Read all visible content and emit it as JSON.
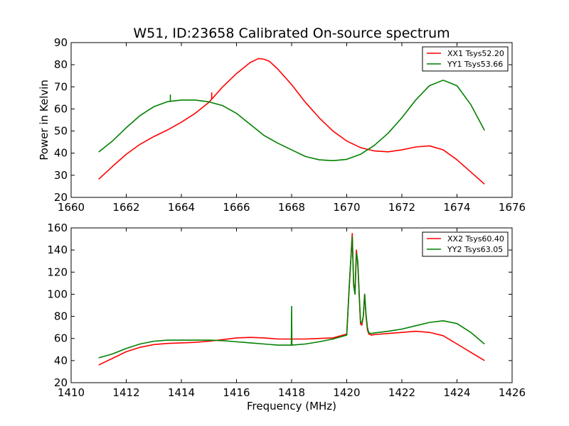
{
  "chart_data": [
    {
      "type": "line",
      "title": "W51, ID:23658 Calibrated On-source spectrum",
      "xlabel": "",
      "ylabel": "Power in Kelvin",
      "xlim": [
        1660,
        1676
      ],
      "ylim": [
        20,
        90
      ],
      "xticks": [
        1660,
        1662,
        1664,
        1666,
        1668,
        1670,
        1672,
        1674,
        1676
      ],
      "yticks": [
        20,
        30,
        40,
        50,
        60,
        70,
        80,
        90
      ],
      "grid": false,
      "legend_position": "top-right",
      "series": [
        {
          "name": "XX1 Tsys52.20",
          "color": "#ff0000",
          "x": [
            1661,
            1661.5,
            1662,
            1662.5,
            1663,
            1663.5,
            1664,
            1664.5,
            1665,
            1665.5,
            1666,
            1666.5,
            1666.8,
            1667,
            1667.2,
            1667.5,
            1668,
            1668.5,
            1669,
            1669.5,
            1670,
            1670.5,
            1671,
            1671.5,
            1672,
            1672.5,
            1673,
            1673.5,
            1674,
            1674.5,
            1675
          ],
          "y": [
            28.2,
            34,
            39.5,
            44,
            47.5,
            50.5,
            54,
            58,
            63,
            70,
            76,
            81,
            82.8,
            82.5,
            81.5,
            78,
            71,
            63,
            56,
            50,
            45.5,
            42.5,
            41,
            40.6,
            41.5,
            42.8,
            43.3,
            41.5,
            37,
            31.5,
            26
          ]
        },
        {
          "name": "YY1 Tsys53.66",
          "color": "#008000",
          "x": [
            1661,
            1661.5,
            1662,
            1662.5,
            1663,
            1663.5,
            1664,
            1664.5,
            1665,
            1665.5,
            1666,
            1666.5,
            1667,
            1667.5,
            1668,
            1668.5,
            1669,
            1669.5,
            1670,
            1670.5,
            1671,
            1671.5,
            1672,
            1672.5,
            1673,
            1673.5,
            1674,
            1674.5,
            1675
          ],
          "y": [
            40.5,
            45.5,
            51.5,
            57,
            61,
            63.3,
            64,
            64,
            63.2,
            61.5,
            58,
            53,
            48,
            44.5,
            41.5,
            38.5,
            37,
            36.6,
            37.2,
            39.5,
            43.5,
            49,
            56,
            64,
            70.5,
            73,
            70.5,
            62,
            50.3
          ]
        }
      ],
      "annotations": [
        {
          "series": "YY1 Tsys53.66",
          "x": 1663.6,
          "peak_y": 66.5
        },
        {
          "series": "XX1 Tsys52.20",
          "x": 1665.1,
          "peak_y": 67.5
        }
      ]
    },
    {
      "type": "line",
      "title": "",
      "xlabel": "Frequency (MHz)",
      "ylabel": "",
      "xlim": [
        1410,
        1426
      ],
      "ylim": [
        20,
        160
      ],
      "xticks": [
        1410,
        1412,
        1414,
        1416,
        1418,
        1420,
        1422,
        1424,
        1426
      ],
      "yticks": [
        20,
        40,
        60,
        80,
        100,
        120,
        140,
        160
      ],
      "grid": false,
      "legend_position": "top-right",
      "series": [
        {
          "name": "XX2 Tsys60.40",
          "color": "#ff0000",
          "x": [
            1411,
            1411.5,
            1412,
            1412.5,
            1413,
            1413.5,
            1414,
            1414.5,
            1415,
            1415.5,
            1416,
            1416.5,
            1417,
            1417.5,
            1418,
            1418.5,
            1419,
            1419.5,
            1420,
            1420.1,
            1420.2,
            1420.25,
            1420.3,
            1420.35,
            1420.4,
            1420.45,
            1420.5,
            1420.55,
            1420.6,
            1420.65,
            1420.7,
            1420.75,
            1420.8,
            1420.9,
            1421,
            1421.5,
            1422,
            1422.5,
            1423,
            1423.5,
            1424,
            1424.5,
            1425
          ],
          "y": [
            36,
            42,
            48,
            52,
            54.5,
            55.5,
            56,
            56.5,
            57.5,
            59,
            60.5,
            61,
            60.5,
            59.5,
            59.5,
            59.5,
            60,
            60.5,
            64,
            110,
            155,
            110,
            101,
            140,
            128,
            100,
            73,
            72,
            80,
            100,
            80,
            68,
            64,
            63,
            63.5,
            64.5,
            65.5,
            66.5,
            65.5,
            62.5,
            55,
            47.5,
            40
          ]
        },
        {
          "name": "YY2 Tsys63.05",
          "color": "#008000",
          "x": [
            1411,
            1411.5,
            1412,
            1412.5,
            1413,
            1413.5,
            1414,
            1414.5,
            1415,
            1415.5,
            1416,
            1416.5,
            1417,
            1417.5,
            1417.99,
            1418,
            1418.01,
            1418.5,
            1419,
            1419.5,
            1420,
            1420.1,
            1420.2,
            1420.25,
            1420.3,
            1420.35,
            1420.4,
            1420.45,
            1420.5,
            1420.55,
            1420.6,
            1420.65,
            1420.7,
            1420.75,
            1420.8,
            1420.9,
            1421,
            1421.5,
            1422,
            1422.5,
            1423,
            1423.5,
            1424,
            1424.5,
            1425
          ],
          "y": [
            42.5,
            46,
            51,
            55,
            57.5,
            58.5,
            58.5,
            58.5,
            58.5,
            58,
            57,
            56,
            55,
            54,
            54,
            89,
            54,
            55,
            57,
            59.5,
            63,
            112,
            152,
            108,
            100,
            137,
            130,
            102,
            75,
            74,
            80,
            100,
            82,
            70,
            65,
            64.5,
            65,
            66.5,
            68.5,
            71.5,
            74.5,
            76,
            73.5,
            65.5,
            55
          ]
        }
      ]
    }
  ]
}
